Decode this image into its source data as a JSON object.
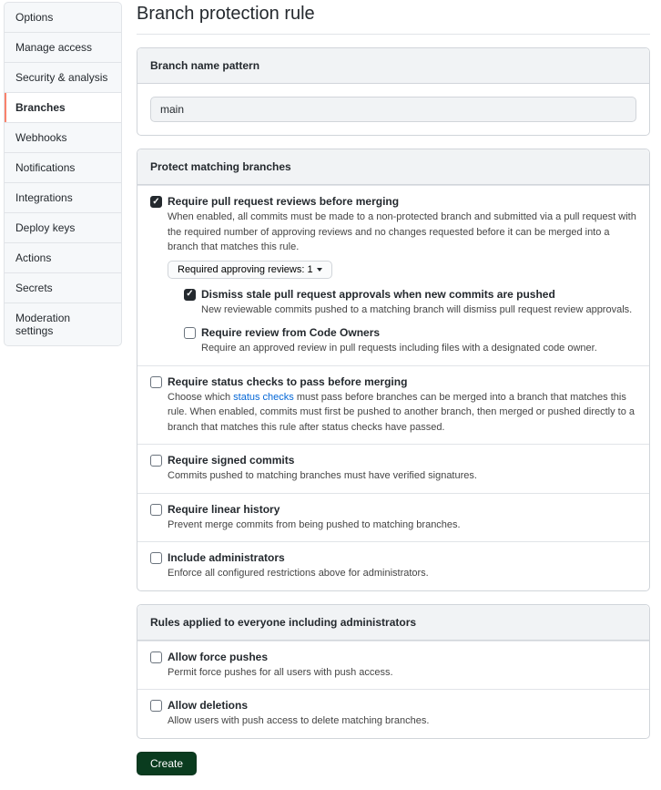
{
  "nav": {
    "items": [
      {
        "label": "Options",
        "selected": false
      },
      {
        "label": "Manage access",
        "selected": false
      },
      {
        "label": "Security & analysis",
        "selected": false
      },
      {
        "label": "Branches",
        "selected": true
      },
      {
        "label": "Webhooks",
        "selected": false
      },
      {
        "label": "Notifications",
        "selected": false
      },
      {
        "label": "Integrations",
        "selected": false
      },
      {
        "label": "Deploy keys",
        "selected": false
      },
      {
        "label": "Actions",
        "selected": false
      },
      {
        "label": "Secrets",
        "selected": false
      },
      {
        "label": "Moderation settings",
        "selected": false
      }
    ]
  },
  "page": {
    "title": "Branch protection rule"
  },
  "pattern_box": {
    "header": "Branch name pattern",
    "value": "main"
  },
  "protect_box": {
    "header": "Protect matching branches",
    "require_pr": {
      "checked": true,
      "title": "Require pull request reviews before merging",
      "desc": "When enabled, all commits must be made to a non-protected branch and submitted via a pull request with the required number of approving reviews and no changes requested before it can be merged into a branch that matches this rule.",
      "dropdown_label": "Required approving reviews: 1",
      "dismiss_stale": {
        "checked": true,
        "title": "Dismiss stale pull request approvals when new commits are pushed",
        "desc": "New reviewable commits pushed to a matching branch will dismiss pull request review approvals."
      },
      "code_owners": {
        "checked": false,
        "title": "Require review from Code Owners",
        "desc": "Require an approved review in pull requests including files with a designated code owner."
      }
    },
    "require_status": {
      "checked": false,
      "title": "Require status checks to pass before merging",
      "desc_pre": "Choose which ",
      "desc_link": "status checks",
      "desc_post": " must pass before branches can be merged into a branch that matches this rule. When enabled, commits must first be pushed to another branch, then merged or pushed directly to a branch that matches this rule after status checks have passed."
    },
    "require_signed": {
      "checked": false,
      "title": "Require signed commits",
      "desc": "Commits pushed to matching branches must have verified signatures."
    },
    "require_linear": {
      "checked": false,
      "title": "Require linear history",
      "desc": "Prevent merge commits from being pushed to matching branches."
    },
    "include_admins": {
      "checked": false,
      "title": "Include administrators",
      "desc": "Enforce all configured restrictions above for administrators."
    }
  },
  "everyone_box": {
    "header": "Rules applied to everyone including administrators",
    "force_pushes": {
      "checked": false,
      "title": "Allow force pushes",
      "desc": "Permit force pushes for all users with push access."
    },
    "deletions": {
      "checked": false,
      "title": "Allow deletions",
      "desc": "Allow users with push access to delete matching branches."
    }
  },
  "create_label": "Create",
  "colors": {
    "accent": "#f9826c",
    "link": "#0366d6",
    "btn_bg": "#0a3c1f"
  }
}
